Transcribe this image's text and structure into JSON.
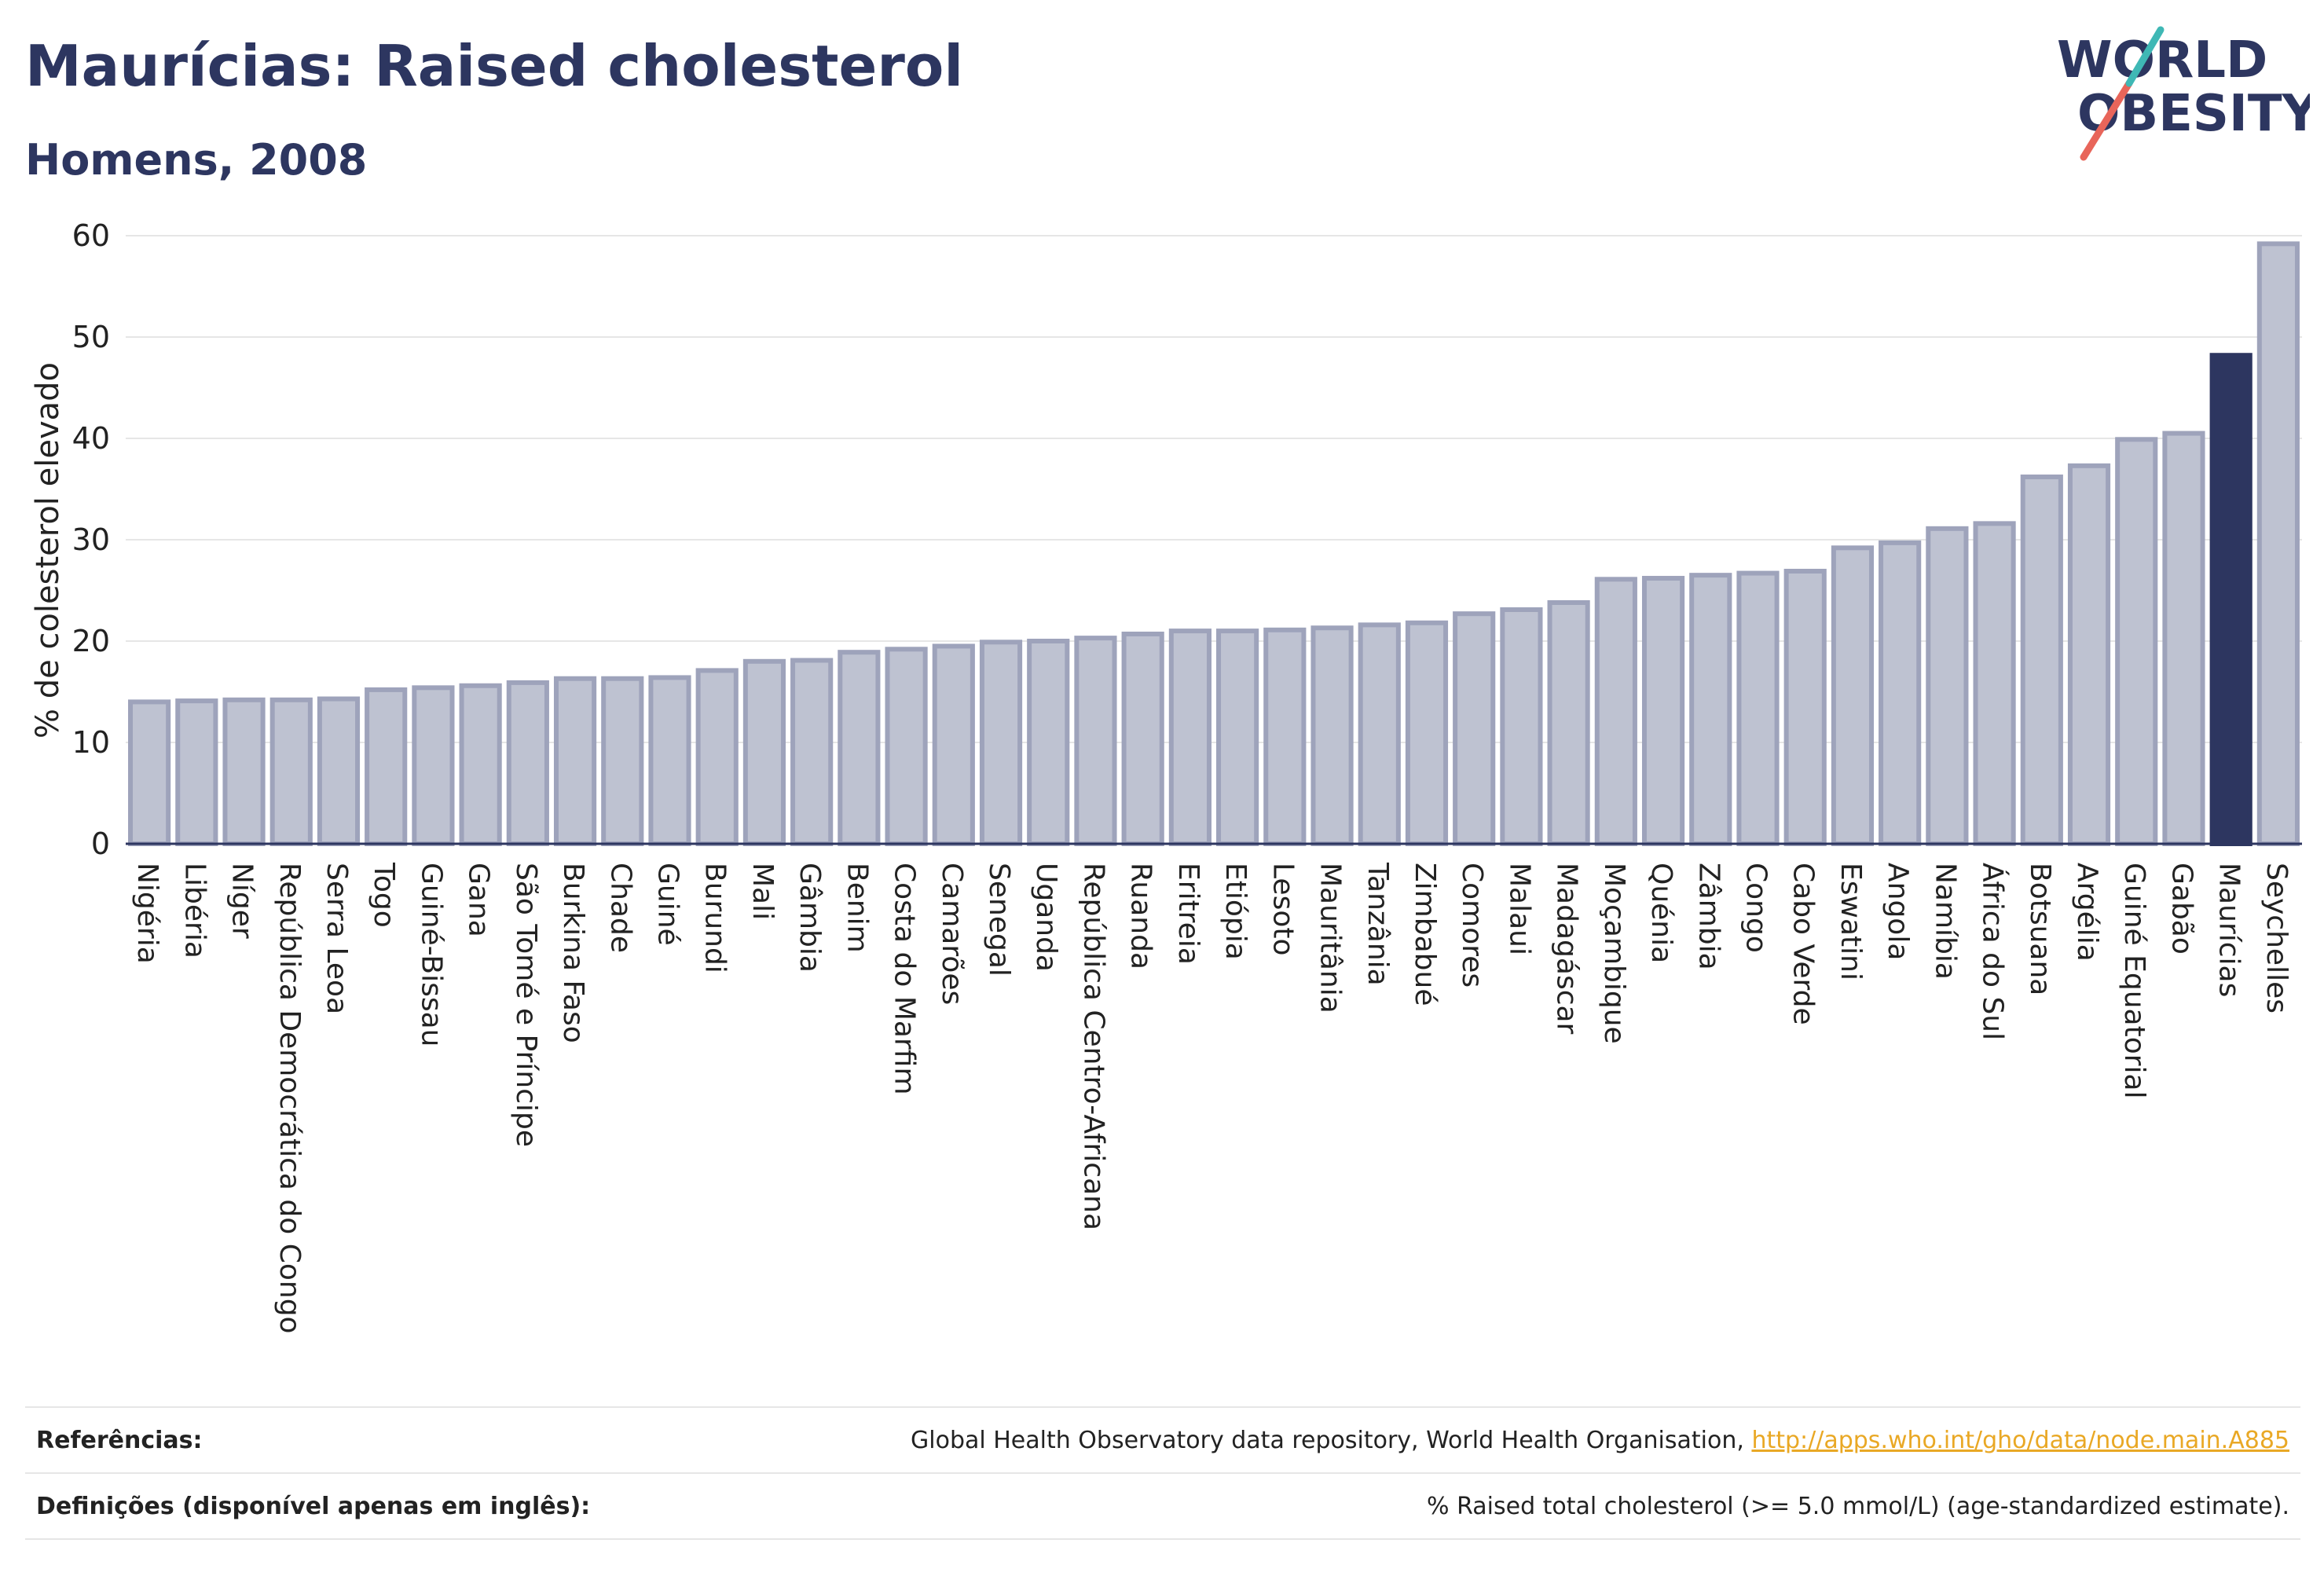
{
  "header": {
    "title": "Maurícias: Raised cholesterol",
    "subtitle": "Homens, 2008"
  },
  "logo": {
    "line1": "WORLD",
    "line2": "OBESITY"
  },
  "references": {
    "label": "Referências:",
    "text": "Global Health Observatory data repository, World Health Organisation, ",
    "link": "http://apps.who.int/gho/data/node.main.A885"
  },
  "definitions": {
    "label": "Definições (disponível apenas em inglês):",
    "text": "% Raised total cholesterol (>= 5.0 mmol/L) (age-standardized estimate)."
  },
  "colors": {
    "highlight": "#2d3660",
    "bar_fill": "#bec2d1",
    "bar_stroke": "#9ea3bb",
    "grid": "#e6e6e6"
  },
  "chart_data": {
    "type": "bar",
    "ylabel": "% de colesterol elevado",
    "ylim": [
      0,
      60
    ],
    "yticks": [
      0,
      10,
      20,
      30,
      40,
      50,
      60
    ],
    "grid": true,
    "highlight": "Maurícias",
    "categories": [
      "Nigéria",
      "Libéria",
      "Níger",
      "República Democrática do Congo",
      "Serra Leoa",
      "Togo",
      "Guiné-Bissau",
      "Gana",
      "São Tomé e Príncipe",
      "Burkina Faso",
      "Chade",
      "Guiné",
      "Burundi",
      "Mali",
      "Gâmbia",
      "Benim",
      "Costa do Marfim",
      "Camarões",
      "Senegal",
      "Uganda",
      "República Centro-Africana",
      "Ruanda",
      "Eritreia",
      "Etiópia",
      "Lesoto",
      "Mauritânia",
      "Tanzânia",
      "Zimbabué",
      "Comores",
      "Malaui",
      "Madagáscar",
      "Moçambique",
      "Quénia",
      "Zâmbia",
      "Congo",
      "Cabo Verde",
      "Eswatini",
      "Angola",
      "Namíbia",
      "África do Sul",
      "Botsuana",
      "Argélia",
      "Guiné Equatorial",
      "Gabão",
      "Maurícias",
      "Seychelles"
    ],
    "values": [
      14.0,
      14.1,
      14.2,
      14.2,
      14.3,
      15.2,
      15.4,
      15.6,
      15.9,
      16.3,
      16.3,
      16.4,
      17.1,
      18.0,
      18.1,
      18.9,
      19.2,
      19.5,
      19.9,
      20.0,
      20.3,
      20.7,
      21.0,
      21.0,
      21.1,
      21.3,
      21.6,
      21.8,
      22.7,
      23.1,
      23.8,
      26.1,
      26.2,
      26.5,
      26.7,
      26.9,
      29.2,
      29.7,
      31.1,
      31.6,
      36.2,
      37.3,
      39.9,
      40.5,
      48.2,
      59.2
    ]
  }
}
